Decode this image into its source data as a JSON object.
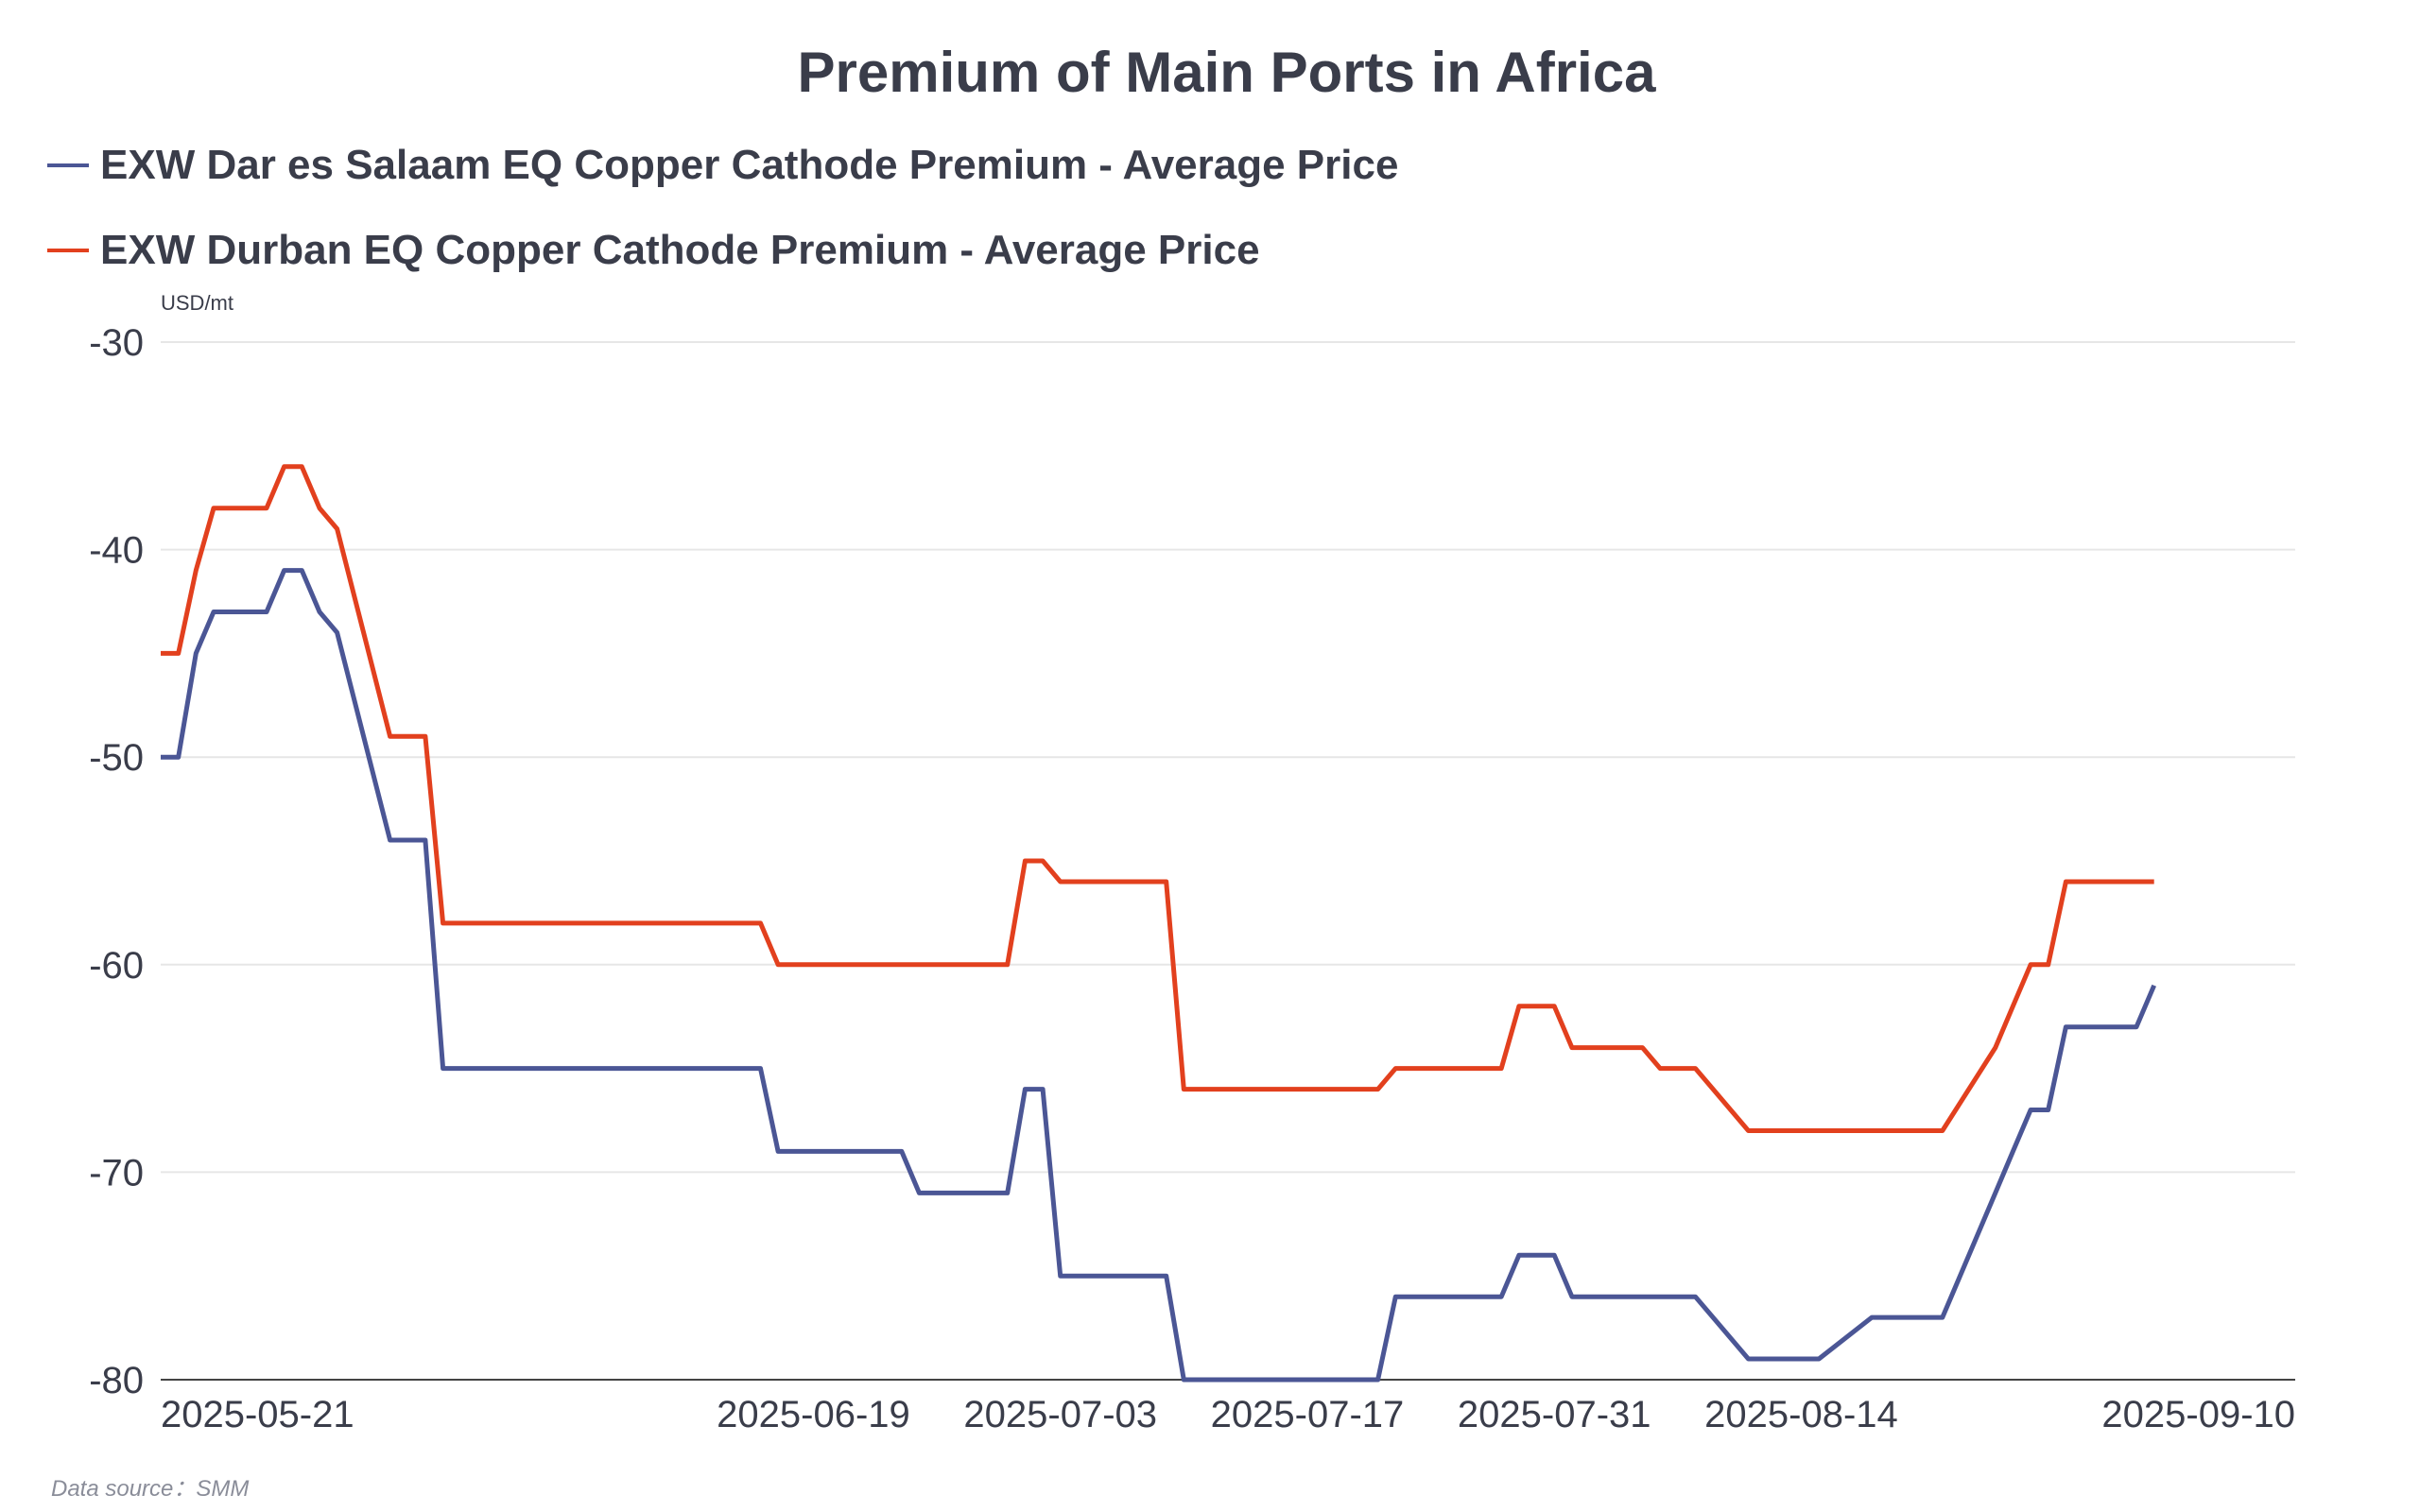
{
  "chart_data": {
    "type": "line",
    "title": "Premium of Main Ports in Africa",
    "unit_label": "USD/mt",
    "source": "Data source：SMM",
    "ylim": [
      -80,
      -30
    ],
    "yticks": [
      -30,
      -40,
      -50,
      -60,
      -70,
      -80
    ],
    "xlim": [
      "2025-05-13",
      "2025-09-11"
    ],
    "xticks": [
      "2025-05-21",
      "2025-06-19",
      "2025-07-03",
      "2025-07-17",
      "2025-07-31",
      "2025-08-14",
      "2025-09-10"
    ],
    "grid": true,
    "legend_position": "top-left",
    "series": [
      {
        "name": "EXW Dar es Salaam EQ Copper Cathode Premium - Average Price",
        "color": "#4b5695",
        "points": [
          [
            "2025-05-13",
            -50
          ],
          [
            "2025-05-14",
            -50
          ],
          [
            "2025-05-15",
            -45
          ],
          [
            "2025-05-16",
            -43
          ],
          [
            "2025-05-19",
            -43
          ],
          [
            "2025-05-20",
            -41
          ],
          [
            "2025-05-21",
            -41
          ],
          [
            "2025-05-22",
            -43
          ],
          [
            "2025-05-23",
            -44
          ],
          [
            "2025-05-26",
            -54
          ],
          [
            "2025-05-27",
            -54
          ],
          [
            "2025-05-28",
            -54
          ],
          [
            "2025-05-29",
            -65
          ],
          [
            "2025-05-30",
            -65
          ],
          [
            "2025-06-16",
            -65
          ],
          [
            "2025-06-17",
            -69
          ],
          [
            "2025-06-18",
            -69
          ],
          [
            "2025-06-24",
            -69
          ],
          [
            "2025-06-25",
            -71
          ],
          [
            "2025-06-26",
            -71
          ],
          [
            "2025-06-30",
            -71
          ],
          [
            "2025-07-01",
            -66
          ],
          [
            "2025-07-02",
            -66
          ],
          [
            "2025-07-03",
            -75
          ],
          [
            "2025-07-04",
            -75
          ],
          [
            "2025-07-09",
            -75
          ],
          [
            "2025-07-10",
            -80
          ],
          [
            "2025-07-11",
            -80
          ],
          [
            "2025-07-21",
            -80
          ],
          [
            "2025-07-22",
            -76
          ],
          [
            "2025-07-23",
            -76
          ],
          [
            "2025-07-28",
            -76
          ],
          [
            "2025-07-29",
            -74
          ],
          [
            "2025-07-30",
            -74
          ],
          [
            "2025-07-31",
            -74
          ],
          [
            "2025-08-01",
            -76
          ],
          [
            "2025-08-04",
            -76
          ],
          [
            "2025-08-08",
            -76
          ],
          [
            "2025-08-11",
            -79
          ],
          [
            "2025-08-12",
            -79
          ],
          [
            "2025-08-15",
            -79
          ],
          [
            "2025-08-18",
            -77
          ],
          [
            "2025-08-19",
            -77
          ],
          [
            "2025-08-22",
            -77
          ],
          [
            "2025-08-25",
            -71
          ],
          [
            "2025-08-26",
            -69
          ],
          [
            "2025-08-27",
            -67
          ],
          [
            "2025-08-28",
            -67
          ],
          [
            "2025-08-29",
            -63
          ],
          [
            "2025-09-01",
            -63
          ],
          [
            "2025-09-02",
            -63
          ],
          [
            "2025-09-03",
            -61
          ]
        ]
      },
      {
        "name": "EXW Durban EQ Copper Cathode Premium - Average Price",
        "color": "#e2401e",
        "points": [
          [
            "2025-05-13",
            -45
          ],
          [
            "2025-05-14",
            -45
          ],
          [
            "2025-05-15",
            -41
          ],
          [
            "2025-05-16",
            -38
          ],
          [
            "2025-05-19",
            -38
          ],
          [
            "2025-05-20",
            -36
          ],
          [
            "2025-05-21",
            -36
          ],
          [
            "2025-05-22",
            -38
          ],
          [
            "2025-05-23",
            -39
          ],
          [
            "2025-05-26",
            -49
          ],
          [
            "2025-05-27",
            -49
          ],
          [
            "2025-05-28",
            -49
          ],
          [
            "2025-05-29",
            -58
          ],
          [
            "2025-05-30",
            -58
          ],
          [
            "2025-06-16",
            -58
          ],
          [
            "2025-06-17",
            -60
          ],
          [
            "2025-06-18",
            -60
          ],
          [
            "2025-06-30",
            -60
          ],
          [
            "2025-07-01",
            -55
          ],
          [
            "2025-07-02",
            -55
          ],
          [
            "2025-07-03",
            -56
          ],
          [
            "2025-07-04",
            -56
          ],
          [
            "2025-07-09",
            -56
          ],
          [
            "2025-07-10",
            -66
          ],
          [
            "2025-07-11",
            -66
          ],
          [
            "2025-07-21",
            -66
          ],
          [
            "2025-07-22",
            -65
          ],
          [
            "2025-07-23",
            -65
          ],
          [
            "2025-07-28",
            -65
          ],
          [
            "2025-07-29",
            -62
          ],
          [
            "2025-07-30",
            -62
          ],
          [
            "2025-07-31",
            -62
          ],
          [
            "2025-08-01",
            -64
          ],
          [
            "2025-08-04",
            -64
          ],
          [
            "2025-08-05",
            -64
          ],
          [
            "2025-08-06",
            -65
          ],
          [
            "2025-08-07",
            -65
          ],
          [
            "2025-08-08",
            -65
          ],
          [
            "2025-08-11",
            -68
          ],
          [
            "2025-08-12",
            -68
          ],
          [
            "2025-08-22",
            -68
          ],
          [
            "2025-08-25",
            -64
          ],
          [
            "2025-08-26",
            -62
          ],
          [
            "2025-08-27",
            -60
          ],
          [
            "2025-08-28",
            -60
          ],
          [
            "2025-08-29",
            -56
          ],
          [
            "2025-09-01",
            -56
          ],
          [
            "2025-09-03",
            -56
          ]
        ]
      }
    ]
  }
}
